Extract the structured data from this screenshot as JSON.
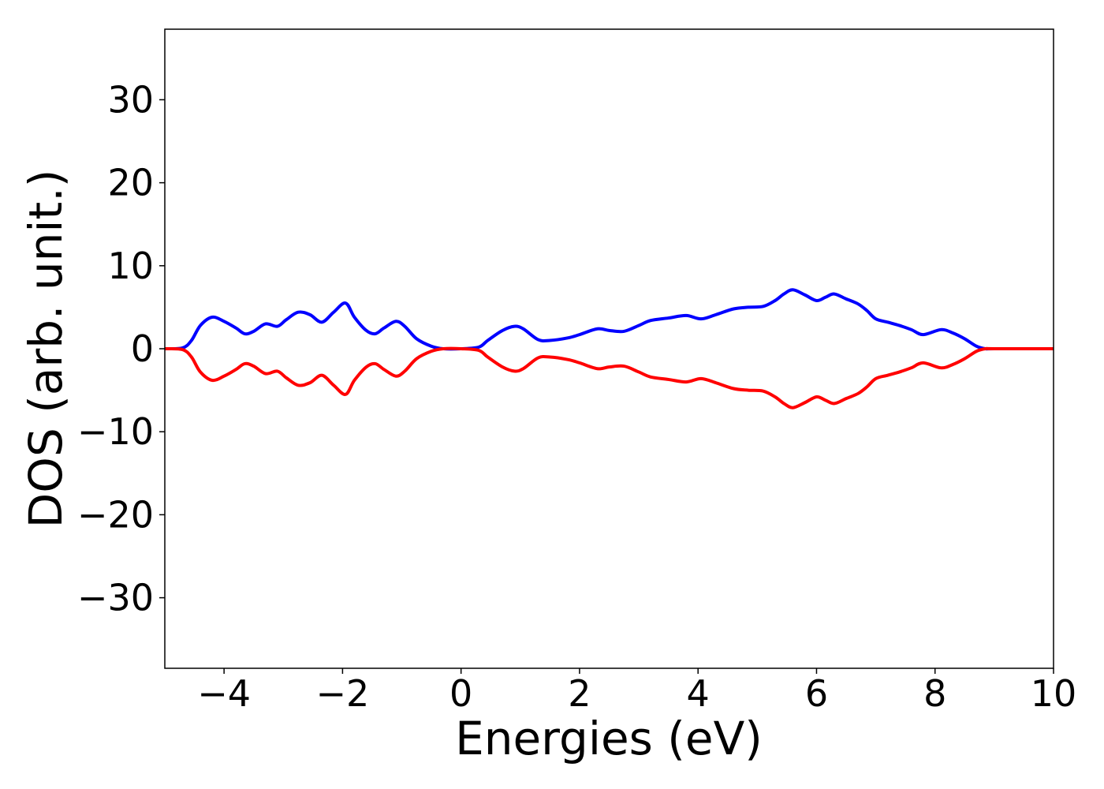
{
  "chart_data": {
    "type": "line",
    "title": "",
    "xlabel": "Energies (eV)",
    "ylabel": "DOS (arb. unit.)",
    "xlim": [
      -5,
      10
    ],
    "ylim": [
      -38.5,
      38.5
    ],
    "xticks": [
      -4,
      -2,
      0,
      2,
      4,
      6,
      8,
      10
    ],
    "yticks": [
      -30,
      -20,
      -10,
      0,
      10,
      20,
      30
    ],
    "xtick_labels": [
      "−4",
      "−2",
      "0",
      "2",
      "4",
      "6",
      "8",
      "10"
    ],
    "ytick_labels": [
      "−30",
      "−20",
      "−10",
      "0",
      "10",
      "20",
      "30"
    ],
    "grid": false,
    "legend": "none",
    "series": [
      {
        "color": "#0000ff",
        "x": [
          -5.0,
          -4.7,
          -4.55,
          -4.4,
          -4.2,
          -4.0,
          -3.8,
          -3.65,
          -3.5,
          -3.3,
          -3.1,
          -2.95,
          -2.75,
          -2.55,
          -2.35,
          -2.15,
          -1.95,
          -1.8,
          -1.6,
          -1.45,
          -1.3,
          -1.1,
          -0.95,
          -0.75,
          -0.5,
          -0.3,
          0.0,
          0.3,
          0.45,
          0.7,
          0.9,
          1.05,
          1.3,
          1.5,
          1.8,
          2.0,
          2.3,
          2.5,
          2.75,
          3.0,
          3.2,
          3.5,
          3.8,
          4.05,
          4.3,
          4.6,
          4.85,
          5.1,
          5.3,
          5.45,
          5.6,
          5.8,
          6.0,
          6.15,
          6.3,
          6.5,
          6.7,
          6.85,
          7.0,
          7.2,
          7.4,
          7.6,
          7.8,
          8.1,
          8.3,
          8.5,
          8.7,
          8.85,
          9.0,
          10.0
        ],
        "y": [
          0.0,
          0.1,
          1.0,
          2.8,
          3.8,
          3.3,
          2.5,
          1.8,
          2.1,
          3.0,
          2.7,
          3.5,
          4.4,
          4.1,
          3.2,
          4.4,
          5.5,
          3.8,
          2.2,
          1.8,
          2.5,
          3.3,
          2.7,
          1.2,
          0.3,
          0.0,
          0.0,
          0.2,
          1.0,
          2.2,
          2.7,
          2.4,
          1.1,
          1.0,
          1.3,
          1.7,
          2.4,
          2.2,
          2.1,
          2.8,
          3.4,
          3.7,
          4.0,
          3.6,
          4.1,
          4.8,
          5.0,
          5.1,
          5.8,
          6.6,
          7.1,
          6.5,
          5.8,
          6.2,
          6.6,
          6.0,
          5.4,
          4.6,
          3.6,
          3.2,
          2.8,
          2.3,
          1.7,
          2.3,
          1.9,
          1.2,
          0.3,
          0.0,
          0.0,
          0.0
        ]
      },
      {
        "color": "#ff0000",
        "x": [
          -5.0,
          -4.7,
          -4.55,
          -4.4,
          -4.2,
          -4.0,
          -3.8,
          -3.65,
          -3.5,
          -3.3,
          -3.1,
          -2.95,
          -2.75,
          -2.55,
          -2.35,
          -2.15,
          -1.95,
          -1.8,
          -1.6,
          -1.45,
          -1.3,
          -1.1,
          -0.95,
          -0.75,
          -0.5,
          -0.3,
          0.0,
          0.3,
          0.45,
          0.7,
          0.9,
          1.05,
          1.3,
          1.5,
          1.8,
          2.0,
          2.3,
          2.5,
          2.75,
          3.0,
          3.2,
          3.5,
          3.8,
          4.05,
          4.3,
          4.6,
          4.85,
          5.1,
          5.3,
          5.45,
          5.6,
          5.8,
          6.0,
          6.15,
          6.3,
          6.5,
          6.7,
          6.85,
          7.0,
          7.2,
          7.4,
          7.6,
          7.8,
          8.1,
          8.3,
          8.5,
          8.7,
          8.85,
          9.0,
          10.0
        ],
        "y": [
          0.0,
          -0.1,
          -1.0,
          -2.8,
          -3.8,
          -3.3,
          -2.5,
          -1.8,
          -2.1,
          -3.0,
          -2.7,
          -3.5,
          -4.4,
          -4.1,
          -3.2,
          -4.4,
          -5.5,
          -3.8,
          -2.2,
          -1.8,
          -2.5,
          -3.3,
          -2.7,
          -1.2,
          -0.3,
          0.0,
          0.0,
          -0.2,
          -1.0,
          -2.2,
          -2.7,
          -2.4,
          -1.1,
          -1.0,
          -1.3,
          -1.7,
          -2.4,
          -2.2,
          -2.1,
          -2.8,
          -3.4,
          -3.7,
          -4.0,
          -3.6,
          -4.1,
          -4.8,
          -5.0,
          -5.1,
          -5.8,
          -6.6,
          -7.1,
          -6.5,
          -5.8,
          -6.2,
          -6.6,
          -6.0,
          -5.4,
          -4.6,
          -3.6,
          -3.2,
          -2.8,
          -2.3,
          -1.7,
          -2.3,
          -1.9,
          -1.2,
          -0.3,
          0.0,
          0.0,
          0.0
        ]
      }
    ]
  }
}
